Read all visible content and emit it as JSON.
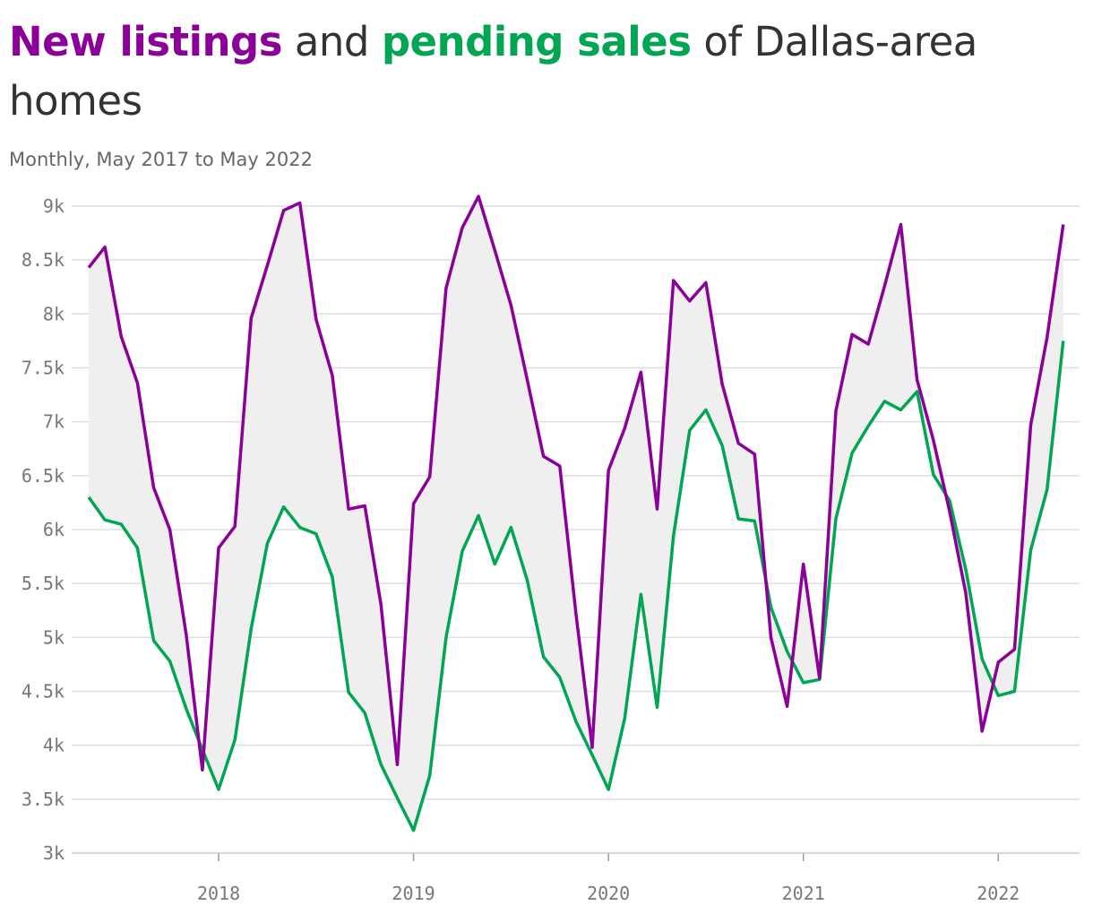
{
  "title": {
    "part1": "New listings",
    "part2": " and ",
    "part3": "pending sales",
    "part4": " of Dallas-area homes"
  },
  "subtitle": "Monthly, May 2017 to May 2022",
  "colors": {
    "new_listings": "#8a0099",
    "pending_sales": "#00a651",
    "band": "#efefef",
    "grid": "#dddddd"
  },
  "chart_data": {
    "type": "line",
    "title": "New listings and pending sales of Dallas-area homes",
    "subtitle": "Monthly, May 2017 to May 2022",
    "x": [
      "2017-05",
      "2017-06",
      "2017-07",
      "2017-08",
      "2017-09",
      "2017-10",
      "2017-11",
      "2017-12",
      "2018-01",
      "2018-02",
      "2018-03",
      "2018-04",
      "2018-05",
      "2018-06",
      "2018-07",
      "2018-08",
      "2018-09",
      "2018-10",
      "2018-11",
      "2018-12",
      "2019-01",
      "2019-02",
      "2019-03",
      "2019-04",
      "2019-05",
      "2019-06",
      "2019-07",
      "2019-08",
      "2019-09",
      "2019-10",
      "2019-11",
      "2019-12",
      "2020-01",
      "2020-02",
      "2020-03",
      "2020-04",
      "2020-05",
      "2020-06",
      "2020-07",
      "2020-08",
      "2020-09",
      "2020-10",
      "2020-11",
      "2020-12",
      "2021-01",
      "2021-02",
      "2021-03",
      "2021-04",
      "2021-05",
      "2021-06",
      "2021-07",
      "2021-08",
      "2021-09",
      "2021-10",
      "2021-11",
      "2021-12",
      "2022-01",
      "2022-02",
      "2022-03",
      "2022-04",
      "2022-05"
    ],
    "series": [
      {
        "name": "New listings",
        "values": [
          8430,
          8620,
          7790,
          7360,
          6390,
          6000,
          5030,
          3770,
          5830,
          6030,
          7960,
          8450,
          8960,
          9030,
          7950,
          7430,
          6190,
          6220,
          5300,
          3820,
          6240,
          6490,
          8240,
          8800,
          9090,
          8590,
          8080,
          7390,
          6680,
          6590,
          5220,
          3980,
          6550,
          6940,
          7460,
          6190,
          8310,
          8120,
          8290,
          7350,
          6800,
          6700,
          5000,
          4360,
          5680,
          4620,
          7100,
          7810,
          7720,
          8260,
          8830,
          7390,
          6830,
          6170,
          5410,
          4130,
          4770,
          4890,
          6970,
          7780,
          8830
        ]
      },
      {
        "name": "pending sales",
        "values": [
          6300,
          6090,
          6050,
          5830,
          4970,
          4780,
          4340,
          3960,
          3590,
          4050,
          5080,
          5870,
          6210,
          6020,
          5960,
          5560,
          4490,
          4300,
          3820,
          3510,
          3210,
          3720,
          5000,
          5800,
          6130,
          5680,
          6020,
          5530,
          4820,
          4630,
          4220,
          3910,
          3590,
          4250,
          5400,
          4350,
          5940,
          6920,
          7110,
          6780,
          6100,
          6080,
          5280,
          4870,
          4580,
          4610,
          6100,
          6710,
          6960,
          7190,
          7110,
          7280,
          6510,
          6270,
          5630,
          4800,
          4460,
          4500,
          5810,
          6370,
          7750
        ]
      }
    ],
    "x_ticks": [
      "2018",
      "2019",
      "2020",
      "2021",
      "2022"
    ],
    "y_ticks": [
      "9k",
      "8.5k",
      "8k",
      "7.5k",
      "7k",
      "6.5k",
      "6k",
      "5.5k",
      "5k",
      "4.5k",
      "4k",
      "3.5k",
      "3k"
    ],
    "ylim": [
      3000,
      9000
    ],
    "grid": true,
    "shaded_band_between_series": true
  }
}
